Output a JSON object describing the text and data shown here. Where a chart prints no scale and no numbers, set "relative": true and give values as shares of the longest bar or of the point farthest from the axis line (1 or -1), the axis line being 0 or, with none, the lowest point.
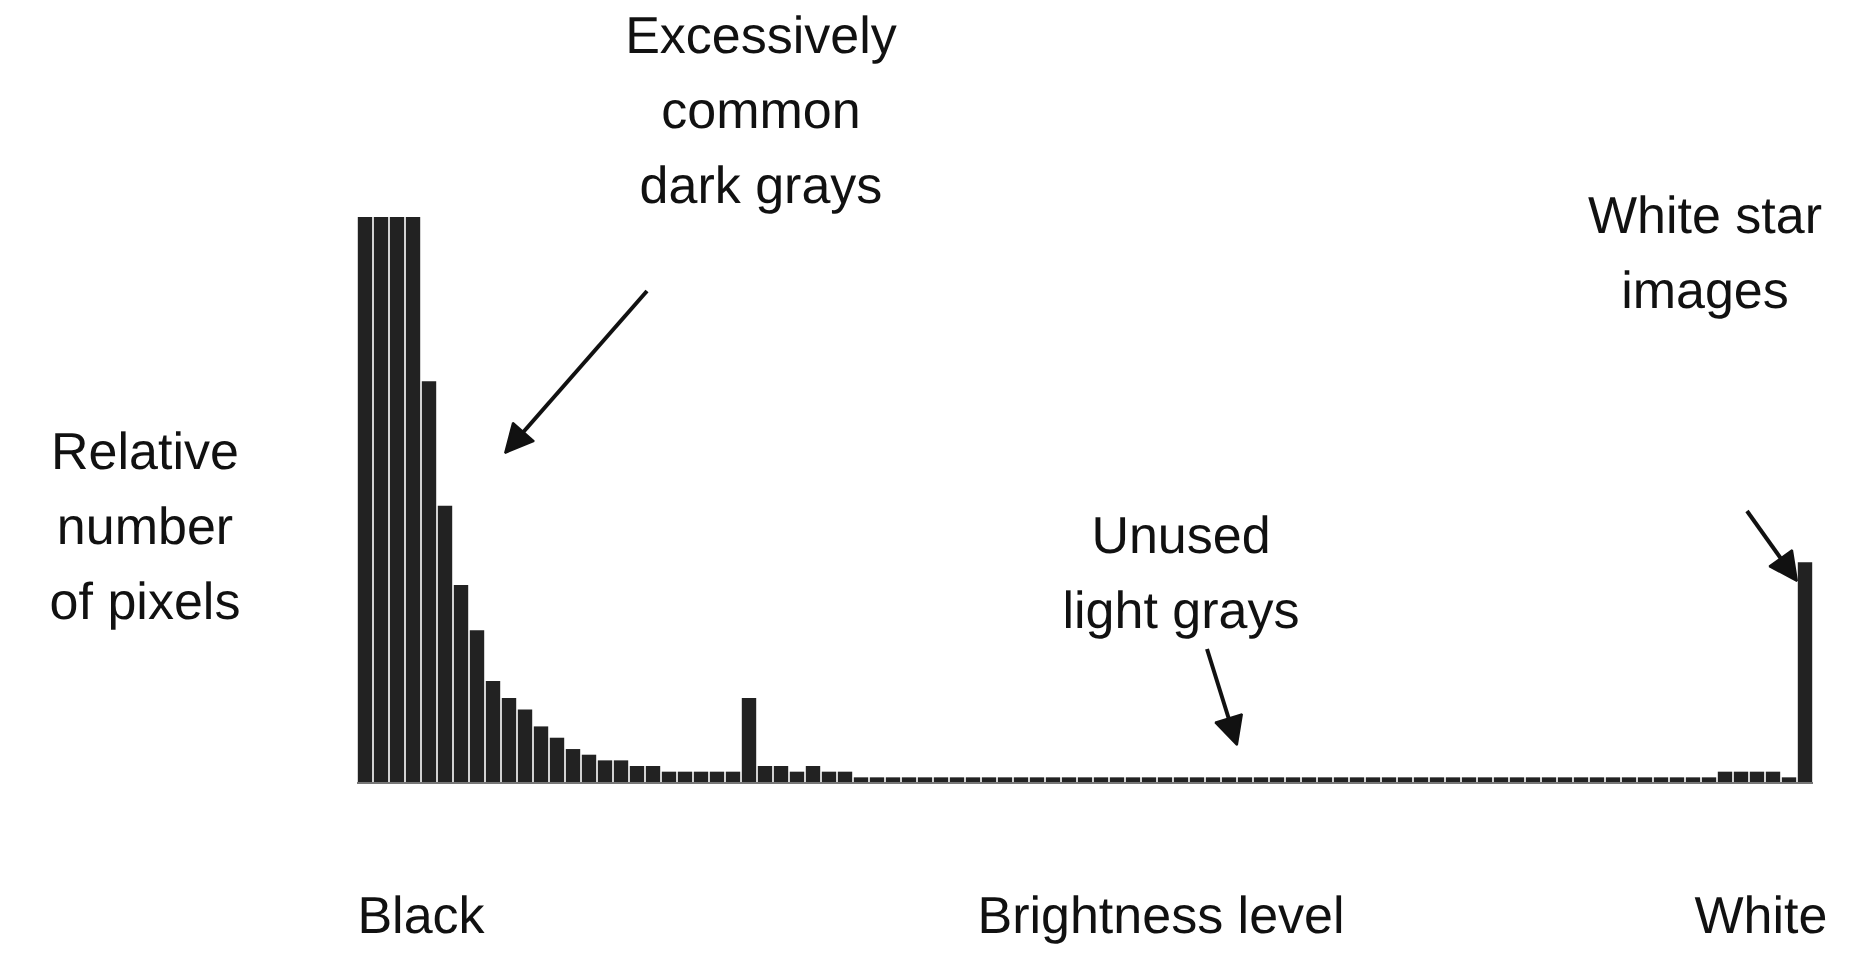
{
  "chart_data": {
    "type": "bar",
    "relative": true,
    "color": "#222222",
    "xlabel": "Brightness level",
    "ylabel": "Relative\nnumber\nof pixels",
    "annotations": [
      "Excessively\ncommon\ndark grays",
      "Unused\nlight grays",
      "White star\nimages",
      "Black",
      "White"
    ],
    "categories": [
      null,
      null,
      null,
      null,
      null,
      null,
      null,
      null,
      null,
      null,
      null,
      null,
      null,
      null,
      null,
      null,
      null,
      null,
      null,
      null,
      null,
      null,
      null,
      null,
      null,
      null,
      null,
      null,
      null,
      null,
      null,
      null,
      null,
      null,
      null,
      null,
      null,
      null,
      null,
      null,
      null,
      null,
      null,
      null,
      null,
      null,
      null,
      null,
      null,
      null,
      null,
      null,
      null,
      null,
      null,
      null,
      null,
      null,
      null,
      null,
      null,
      null,
      null,
      null,
      null,
      null,
      null,
      null,
      null,
      null,
      null,
      null,
      null,
      null,
      null,
      null,
      null,
      null,
      null,
      null,
      null,
      null,
      null,
      null,
      null,
      null,
      null,
      null,
      null,
      null,
      null
    ],
    "values": [
      1,
      1,
      1,
      1,
      0.71,
      0.49,
      0.35,
      0.27,
      0.18,
      0.15,
      0.13,
      0.1,
      0.08,
      0.06,
      0.05,
      0.04,
      0.04,
      0.03,
      0.03,
      0.02,
      0.02,
      0.02,
      0.02,
      0.02,
      0.15,
      0.03,
      0.03,
      0.02,
      0.03,
      0.02,
      0.02,
      0.01,
      0.01,
      0.01,
      0.01,
      0.01,
      0.01,
      0.01,
      0.01,
      0.01,
      0.01,
      0.01,
      0.01,
      0.01,
      0.01,
      0.01,
      0.01,
      0.01,
      0.01,
      0.01,
      0.01,
      0.01,
      0.01,
      0.01,
      0.01,
      0.01,
      0.01,
      0.01,
      0.01,
      0.01,
      0.01,
      0.01,
      0.01,
      0.01,
      0.01,
      0.01,
      0.01,
      0.01,
      0.01,
      0.01,
      0.01,
      0.01,
      0.01,
      0.01,
      0.01,
      0.01,
      0.01,
      0.01,
      0.01,
      0.01,
      0.01,
      0.01,
      0.01,
      0.01,
      0.01,
      0.02,
      0.02,
      0.02,
      0.02,
      0.01,
      0.39
    ]
  }
}
